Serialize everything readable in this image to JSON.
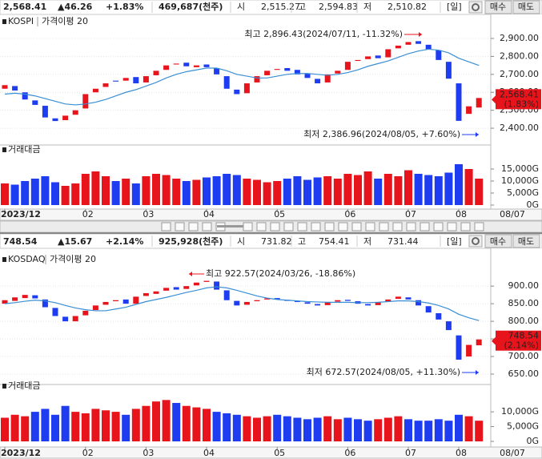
{
  "chart_data": [
    {
      "type": "candlestick",
      "quote": {
        "price": "2,568.41",
        "change": "▲46.26",
        "change_pct": "+1.83%",
        "volume": "469,687(천주)",
        "open_label": "시",
        "open": "2,515.27",
        "high_label": "고",
        "high": "2,594.83",
        "low_label": "저",
        "low": "2,510.82",
        "period": "[일]",
        "buy": "매수",
        "sell": "매도"
      },
      "title": "KOSPI",
      "ma_name": "가격이평 20",
      "categories": [
        "2023/12",
        null,
        null,
        null,
        null,
        null,
        null,
        null,
        "02",
        null,
        null,
        null,
        null,
        null,
        "03",
        null,
        null,
        null,
        null,
        null,
        "04",
        null,
        null,
        null,
        null,
        null,
        null,
        "05",
        null,
        null,
        null,
        null,
        null,
        null,
        "06",
        null,
        null,
        null,
        null,
        null,
        "07",
        null,
        null,
        null,
        null,
        "08",
        null,
        null
      ],
      "open": [
        2620,
        2635,
        2600,
        2555,
        2525,
        2455,
        2445,
        2475,
        2510,
        2600,
        2630,
        2665,
        2665,
        2685,
        2655,
        2695,
        2725,
        2755,
        2765,
        2740,
        2755,
        2735,
        2690,
        2615,
        2595,
        2655,
        2695,
        2725,
        2735,
        2725,
        2705,
        2675,
        2655,
        2705,
        2725,
        2775,
        2785,
        2805,
        2795,
        2845,
        2865,
        2885,
        2865,
        2835,
        2770,
        2650,
        2480,
        2515.27
      ],
      "close": [
        2640,
        2610,
        2560,
        2530,
        2460,
        2440,
        2470,
        2500,
        2590,
        2620,
        2650,
        2660,
        2680,
        2650,
        2690,
        2720,
        2750,
        2760,
        2745,
        2750,
        2740,
        2700,
        2620,
        2590,
        2650,
        2690,
        2720,
        2730,
        2720,
        2700,
        2680,
        2650,
        2700,
        2720,
        2770,
        2780,
        2800,
        2790,
        2840,
        2860,
        2880,
        2870,
        2840,
        2780,
        2676,
        2441,
        2522,
        2568.41
      ],
      "ma": [
        2590,
        2595,
        2590,
        2580,
        2565,
        2550,
        2535,
        2530,
        2535,
        2545,
        2560,
        2580,
        2600,
        2615,
        2635,
        2655,
        2680,
        2700,
        2715,
        2725,
        2735,
        2735,
        2720,
        2700,
        2690,
        2680,
        2680,
        2690,
        2700,
        2705,
        2705,
        2700,
        2695,
        2700,
        2710,
        2725,
        2745,
        2760,
        2775,
        2795,
        2815,
        2830,
        2840,
        2835,
        2820,
        2790,
        2770,
        2750
      ],
      "up_color": "#e8141c",
      "down_color": "#1f3df0",
      "ma_color": "#3a8fd4",
      "ylim": [
        2320,
        3025
      ],
      "yticks": [
        {
          "value": 2400,
          "label": "2,400.00"
        },
        {
          "value": 2500,
          "label": "2,500.00"
        },
        {
          "value": 2600,
          "label": "2,600.00"
        },
        {
          "value": 2700,
          "label": "2,700.00"
        },
        {
          "value": 2800,
          "label": "2,800.00"
        },
        {
          "value": 2900,
          "label": "2,900.00"
        }
      ],
      "last_label": "2,568.41",
      "last_pct": "(1.83%)",
      "annotations": [
        "최고 2,896.43(2024/07/11, -11.32%)",
        "최저 2,386.96(2024/08/05, +7.60%)"
      ],
      "volume": {
        "title": "거래대금",
        "values": [
          9000,
          8500,
          10000,
          11000,
          12000,
          9500,
          8000,
          9000,
          13000,
          14000,
          12000,
          10000,
          11000,
          9000,
          12000,
          13000,
          12500,
          11000,
          10000,
          10500,
          11500,
          12000,
          13000,
          12500,
          11000,
          10500,
          9500,
          10000,
          11000,
          12000,
          10500,
          11500,
          12000,
          11000,
          13000,
          12500,
          14000,
          11000,
          13000,
          12000,
          14500,
          13000,
          12500,
          12000,
          13500,
          17000,
          15000,
          11000
        ],
        "ylim": [
          0,
          23000
        ],
        "yticks": [
          {
            "value": 0,
            "label": "0G"
          },
          {
            "value": 5000,
            "label": "5,000G"
          },
          {
            "value": 10000,
            "label": "10,000G"
          },
          {
            "value": 15000,
            "label": "15,000G"
          }
        ]
      },
      "date_label": "08/07"
    },
    {
      "type": "candlestick",
      "quote": {
        "price": "748.54",
        "change": "▲15.67",
        "change_pct": "+2.14%",
        "volume": "925,928(천주)",
        "open_label": "시",
        "open": "731.82",
        "high_label": "고",
        "high": "754.41",
        "low_label": "저",
        "low": "731.44",
        "period": "[일]",
        "buy": "매수",
        "sell": "매도"
      },
      "title": "KOSDAQ",
      "ma_name": "가격이평 20",
      "categories": [
        "2023/12",
        null,
        null,
        null,
        null,
        null,
        null,
        null,
        "02",
        null,
        null,
        null,
        null,
        null,
        "03",
        null,
        null,
        null,
        null,
        null,
        "04",
        null,
        null,
        null,
        null,
        null,
        null,
        "05",
        null,
        null,
        null,
        null,
        null,
        null,
        "06",
        null,
        null,
        null,
        null,
        null,
        "07",
        null,
        null,
        null,
        null,
        "08",
        null,
        null
      ],
      "open": [
        850,
        858,
        866,
        874,
        862,
        838,
        813,
        800,
        817,
        832,
        847,
        857,
        862,
        850,
        872,
        878,
        887,
        897,
        892,
        902,
        912,
        913,
        888,
        858,
        847,
        857,
        862,
        866,
        861,
        857,
        854,
        849,
        846,
        856,
        861,
        857,
        849,
        846,
        856,
        864,
        868,
        860,
        843,
        823,
        800,
        760,
        700,
        731.82
      ],
      "close": [
        860,
        868,
        875,
        865,
        840,
        815,
        800,
        815,
        830,
        845,
        855,
        860,
        850,
        870,
        880,
        885,
        895,
        890,
        900,
        910,
        915,
        890,
        860,
        845,
        855,
        860,
        865,
        862,
        858,
        855,
        850,
        845,
        855,
        860,
        858,
        850,
        845,
        855,
        862,
        870,
        862,
        845,
        825,
        805,
        775,
        691,
        733,
        748.54
      ],
      "ma": [
        850,
        853,
        857,
        860,
        858,
        853,
        845,
        838,
        833,
        830,
        830,
        835,
        840,
        848,
        856,
        862,
        868,
        875,
        882,
        888,
        895,
        898,
        895,
        888,
        880,
        872,
        866,
        862,
        860,
        858,
        856,
        855,
        854,
        854,
        854,
        853,
        853,
        854,
        856,
        858,
        858,
        856,
        852,
        845,
        835,
        820,
        810,
        802
      ],
      "up_color": "#e8141c",
      "down_color": "#1f3df0",
      "ma_color": "#3a8fd4",
      "ylim": [
        625,
        955
      ],
      "yticks": [
        {
          "value": 650,
          "label": "650.00"
        },
        {
          "value": 700,
          "label": "700.00"
        },
        {
          "value": 750,
          "label": "750.00"
        },
        {
          "value": 800,
          "label": "800.00"
        },
        {
          "value": 850,
          "label": "850.00"
        },
        {
          "value": 900,
          "label": "900.00"
        }
      ],
      "last_label": "748.54",
      "last_pct": "(2.14%)",
      "annotations": [
        "최고 922.57(2024/03/26, -18.86%)",
        "최저 672.57(2024/08/05, +11.30%)"
      ],
      "volume": {
        "title": "거래대금",
        "values": [
          8000,
          9000,
          8500,
          10000,
          11000,
          9000,
          12000,
          10000,
          9500,
          11000,
          10500,
          10000,
          9000,
          11000,
          12000,
          13500,
          14000,
          13000,
          12000,
          11500,
          11000,
          10000,
          9500,
          9000,
          8500,
          8000,
          8500,
          9000,
          8500,
          8000,
          7500,
          8000,
          8500,
          7500,
          8000,
          7500,
          7000,
          7500,
          8000,
          8500,
          7500,
          7000,
          7000,
          7500,
          7000,
          9000,
          8500,
          7000
        ],
        "ylim": [
          0,
          18700
        ],
        "yticks": [
          {
            "value": 0,
            "label": "0G"
          },
          {
            "value": 5000,
            "label": "5,000G"
          },
          {
            "value": 10000,
            "label": "10,000G"
          }
        ]
      },
      "date_label": "08/07"
    }
  ]
}
